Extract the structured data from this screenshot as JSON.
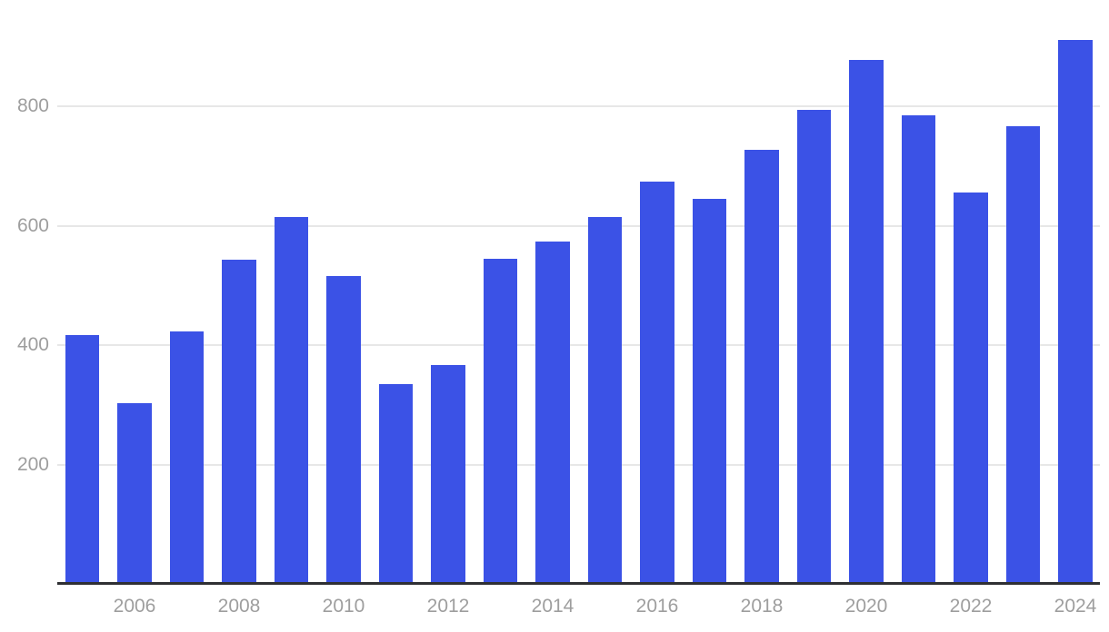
{
  "chart_data": {
    "type": "bar",
    "title": "",
    "xlabel": "",
    "ylabel": "",
    "categories": [
      "2005",
      "2006",
      "2007",
      "2008",
      "2009",
      "2010",
      "2011",
      "2012",
      "2013",
      "2014",
      "2015",
      "2016",
      "2017",
      "2018",
      "2019",
      "2020",
      "2021",
      "2022",
      "2023",
      "2024"
    ],
    "values": [
      417,
      302,
      423,
      543,
      615,
      515,
      334,
      366,
      545,
      573,
      615,
      674,
      645,
      727,
      794,
      878,
      785,
      656,
      767,
      911
    ],
    "yticks": [
      200,
      400,
      600,
      800
    ],
    "ytick_labels": [
      "200",
      "400",
      "600",
      "800"
    ],
    "xtick_labels": [
      "2006",
      "2008",
      "2010",
      "2012",
      "2014",
      "2016",
      "2018",
      "2020",
      "2022",
      "2024"
    ],
    "ylim": [
      0,
      978
    ],
    "grid": "horizontal",
    "legend": "none",
    "colors": {
      "bar": "#3b52e6",
      "gridline": "#e7e7e7",
      "axis_line": "#2f3033",
      "tick_label": "#9e9e9e"
    }
  }
}
